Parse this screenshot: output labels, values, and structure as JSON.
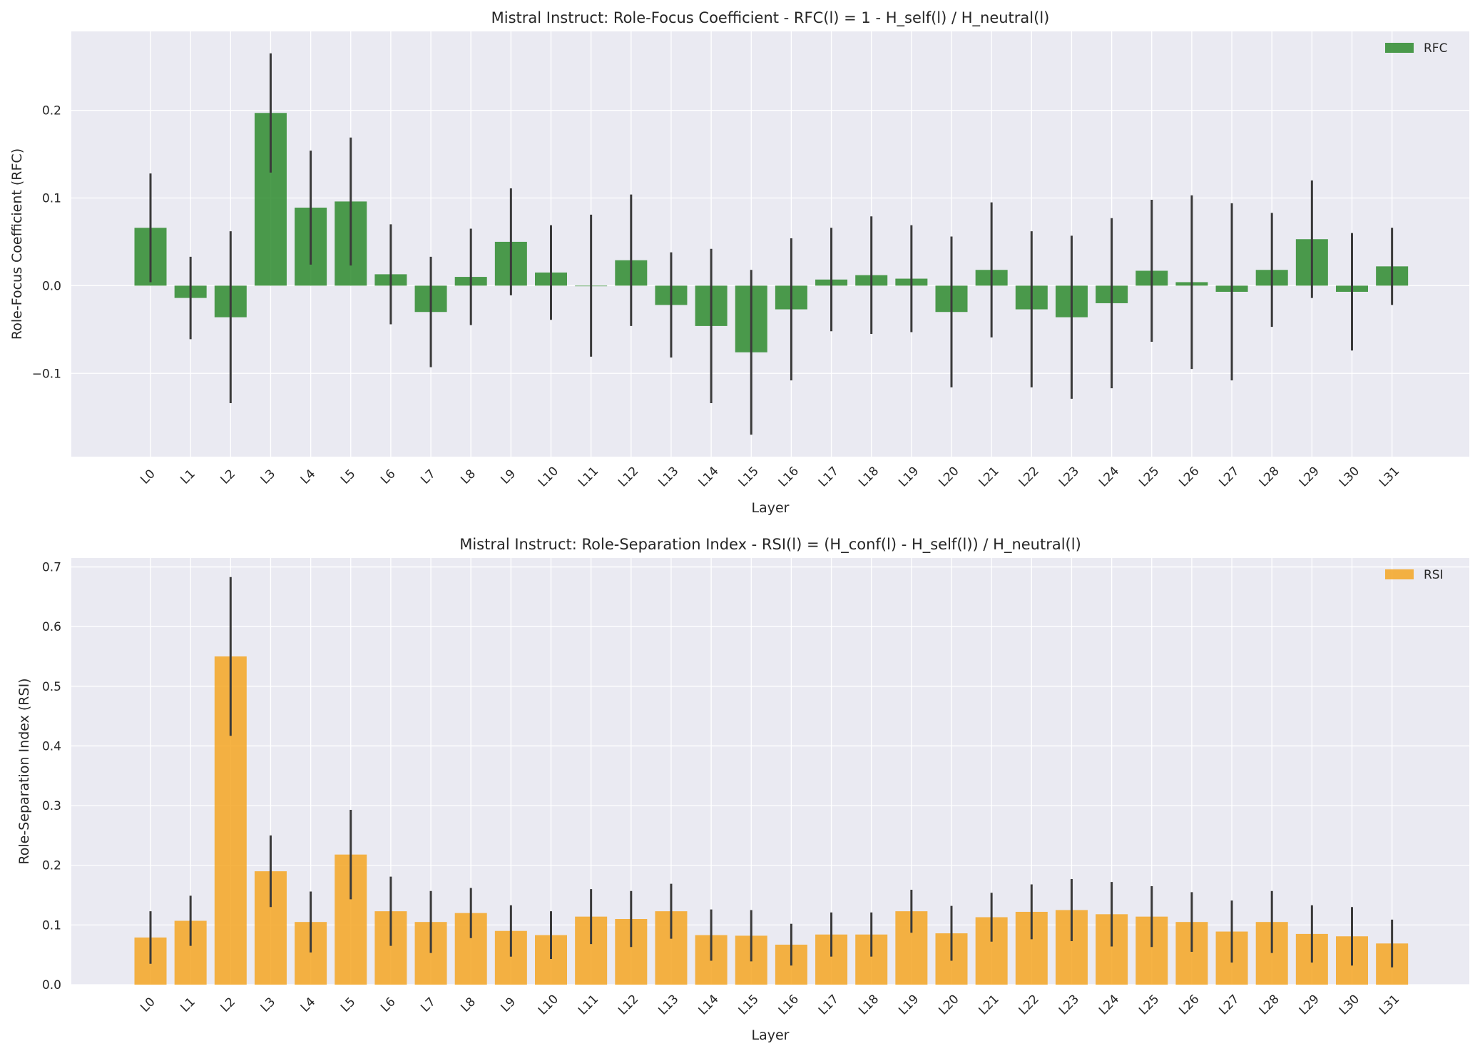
{
  "chart_data": [
    {
      "type": "bar",
      "title": "Mistral Instruct: Role-Focus Coefficient - RFC(l) = 1 - H_self(l) / H_neutral(l)",
      "xlabel": "Layer",
      "ylabel": "Role-Focus Coefficient (RFC)",
      "ylim": [
        -0.195,
        0.29
      ],
      "yticks": [
        -0.1,
        0.0,
        0.1,
        0.2
      ],
      "ytick_labels": [
        "−0.1",
        "0.0",
        "0.1",
        "0.2"
      ],
      "grid": true,
      "legend": "top-right",
      "series": [
        {
          "name": "RFC",
          "color": "#2e8b2e",
          "values": [
            0.066,
            -0.014,
            -0.036,
            0.197,
            0.089,
            0.096,
            0.013,
            -0.03,
            0.01,
            0.05,
            0.015,
            0.0,
            0.029,
            -0.022,
            -0.046,
            -0.076,
            -0.027,
            0.007,
            0.012,
            0.008,
            -0.03,
            0.018,
            -0.027,
            -0.036,
            -0.02,
            0.017,
            0.004,
            -0.007,
            0.018,
            0.053,
            -0.007,
            0.022
          ],
          "errors": [
            0.062,
            0.047,
            0.098,
            0.068,
            0.065,
            0.073,
            0.057,
            0.063,
            0.055,
            0.061,
            0.054,
            0.081,
            0.075,
            0.06,
            0.088,
            0.094,
            0.081,
            0.059,
            0.067,
            0.061,
            0.086,
            0.077,
            0.089,
            0.093,
            0.097,
            0.081,
            0.099,
            0.101,
            0.065,
            0.067,
            0.067,
            0.044
          ]
        }
      ],
      "categories": [
        "L0",
        "L1",
        "L2",
        "L3",
        "L4",
        "L5",
        "L6",
        "L7",
        "L8",
        "L9",
        "L10",
        "L11",
        "L12",
        "L13",
        "L14",
        "L15",
        "L16",
        "L17",
        "L18",
        "L19",
        "L20",
        "L21",
        "L22",
        "L23",
        "L24",
        "L25",
        "L26",
        "L27",
        "L28",
        "L29",
        "L30",
        "L31"
      ]
    },
    {
      "type": "bar",
      "title": "Mistral Instruct: Role-Separation Index - RSI(l) = (H_conf(l) - H_self(l)) / H_neutral(l)",
      "xlabel": "Layer",
      "ylabel": "Role-Separation Index (RSI)",
      "ylim": [
        0.0,
        0.715
      ],
      "yticks": [
        0.0,
        0.1,
        0.2,
        0.3,
        0.4,
        0.5,
        0.6,
        0.7
      ],
      "ytick_labels": [
        "0.0",
        "0.1",
        "0.2",
        "0.3",
        "0.4",
        "0.5",
        "0.6",
        "0.7"
      ],
      "grid": true,
      "legend": "top-right",
      "series": [
        {
          "name": "RSI",
          "color": "#f5a623",
          "values": [
            0.079,
            0.107,
            0.55,
            0.19,
            0.105,
            0.218,
            0.123,
            0.105,
            0.12,
            0.09,
            0.083,
            0.114,
            0.11,
            0.123,
            0.083,
            0.082,
            0.067,
            0.084,
            0.084,
            0.123,
            0.086,
            0.113,
            0.122,
            0.125,
            0.118,
            0.114,
            0.105,
            0.089,
            0.105,
            0.085,
            0.081,
            0.069
          ],
          "errors": [
            0.044,
            0.042,
            0.133,
            0.06,
            0.051,
            0.075,
            0.058,
            0.052,
            0.042,
            0.043,
            0.04,
            0.046,
            0.047,
            0.046,
            0.043,
            0.043,
            0.035,
            0.037,
            0.037,
            0.036,
            0.046,
            0.041,
            0.046,
            0.052,
            0.054,
            0.051,
            0.05,
            0.052,
            0.052,
            0.048,
            0.049,
            0.04
          ]
        }
      ],
      "categories": [
        "L0",
        "L1",
        "L2",
        "L3",
        "L4",
        "L5",
        "L6",
        "L7",
        "L8",
        "L9",
        "L10",
        "L11",
        "L12",
        "L13",
        "L14",
        "L15",
        "L16",
        "L17",
        "L18",
        "L19",
        "L20",
        "L21",
        "L22",
        "L23",
        "L24",
        "L25",
        "L26",
        "L27",
        "L28",
        "L29",
        "L30",
        "L31"
      ]
    }
  ]
}
